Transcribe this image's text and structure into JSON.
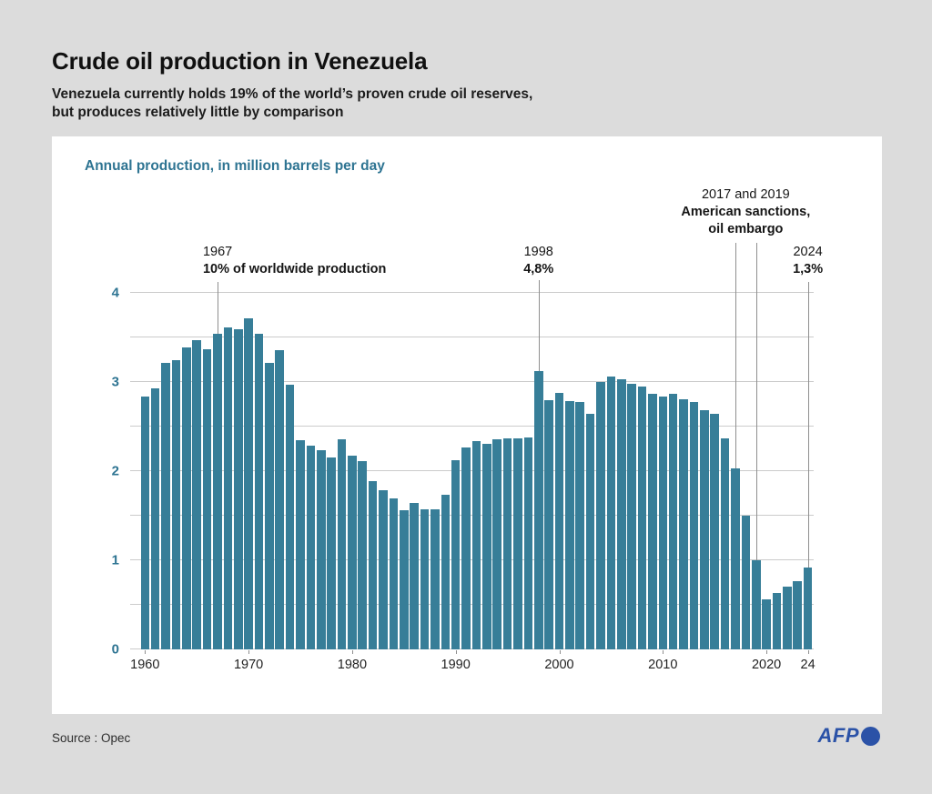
{
  "header": {
    "title": "Crude oil production in Venezuela",
    "subtitle_line1": "Venezuela currently holds 19% of the world’s proven crude oil reserves,",
    "subtitle_line2": "but produces relatively little by comparison"
  },
  "footer": {
    "source": "Source : Opec",
    "logo_text": "AFP"
  },
  "colors": {
    "page_background": "#dcdcdc",
    "card_background": "#ffffff",
    "bar": "#377e98",
    "accent_teal": "#2e7492",
    "gridline": "#cbcbcb",
    "annotation_line": "#8f8f8f",
    "afp_blue": "#2b52a7"
  },
  "chart_data": {
    "type": "bar",
    "title": "Annual production, in million barrels per day",
    "xlabel": "",
    "ylabel": "",
    "ylim": [
      0,
      4
    ],
    "grid": true,
    "axes": {
      "y_max": 4,
      "grid_step": 0.5,
      "y_ticks": [
        0,
        1,
        2,
        3,
        4
      ],
      "x_ticks": [
        {
          "year": 1960,
          "label": "1960"
        },
        {
          "year": 1970,
          "label": "1970"
        },
        {
          "year": 1980,
          "label": "1980"
        },
        {
          "year": 1990,
          "label": "1990"
        },
        {
          "year": 2000,
          "label": "2000"
        },
        {
          "year": 2010,
          "label": "2010"
        },
        {
          "year": 2020,
          "label": "2020"
        },
        {
          "year": 2024,
          "label": "24"
        }
      ]
    },
    "data": {
      "years": [
        1960,
        1961,
        1962,
        1963,
        1964,
        1965,
        1966,
        1967,
        1968,
        1969,
        1970,
        1971,
        1972,
        1973,
        1974,
        1975,
        1976,
        1977,
        1978,
        1979,
        1980,
        1981,
        1982,
        1983,
        1984,
        1985,
        1986,
        1987,
        1988,
        1989,
        1990,
        1991,
        1992,
        1993,
        1994,
        1995,
        1996,
        1997,
        1998,
        1999,
        2000,
        2001,
        2002,
        2003,
        2004,
        2005,
        2006,
        2007,
        2008,
        2009,
        2010,
        2011,
        2012,
        2013,
        2014,
        2015,
        2016,
        2017,
        2018,
        2019,
        2020,
        2021,
        2022,
        2023,
        2024
      ],
      "values": [
        2.84,
        2.93,
        3.21,
        3.25,
        3.39,
        3.47,
        3.37,
        3.54,
        3.61,
        3.59,
        3.71,
        3.54,
        3.21,
        3.36,
        2.97,
        2.35,
        2.29,
        2.23,
        2.15,
        2.36,
        2.17,
        2.11,
        1.89,
        1.79,
        1.69,
        1.56,
        1.64,
        1.57,
        1.57,
        1.73,
        2.12,
        2.27,
        2.34,
        2.31,
        2.36,
        2.37,
        2.37,
        2.38,
        3.12,
        2.8,
        2.88,
        2.79,
        2.78,
        2.64,
        3.0,
        3.06,
        3.03,
        2.98,
        2.95,
        2.87,
        2.84,
        2.87,
        2.81,
        2.78,
        2.68,
        2.64,
        2.37,
        2.03,
        1.5,
        1.0,
        0.56,
        0.63,
        0.7,
        0.77,
        0.92
      ]
    },
    "annotations": [
      {
        "id": "prod1967",
        "anchor_year": 1967,
        "lines": [
          {
            "text": "1967",
            "bold": false
          },
          {
            "text": "10% of worldwide production",
            "bold": true
          }
        ]
      },
      {
        "id": "share1998",
        "anchor_year": 1998,
        "lines": [
          {
            "text": "1998",
            "bold": false
          },
          {
            "text": "4,8%",
            "bold": true
          }
        ]
      },
      {
        "id": "sanctions",
        "anchor_years": [
          2017,
          2019
        ],
        "lines": [
          {
            "text": "2017 and 2019",
            "bold": false
          },
          {
            "text": "American sanctions,",
            "bold": true
          },
          {
            "text": "oil embargo",
            "bold": true
          }
        ]
      },
      {
        "id": "share2024",
        "anchor_year": 2024,
        "lines": [
          {
            "text": "2024",
            "bold": false
          },
          {
            "text": "1,3%",
            "bold": true
          }
        ]
      }
    ]
  }
}
